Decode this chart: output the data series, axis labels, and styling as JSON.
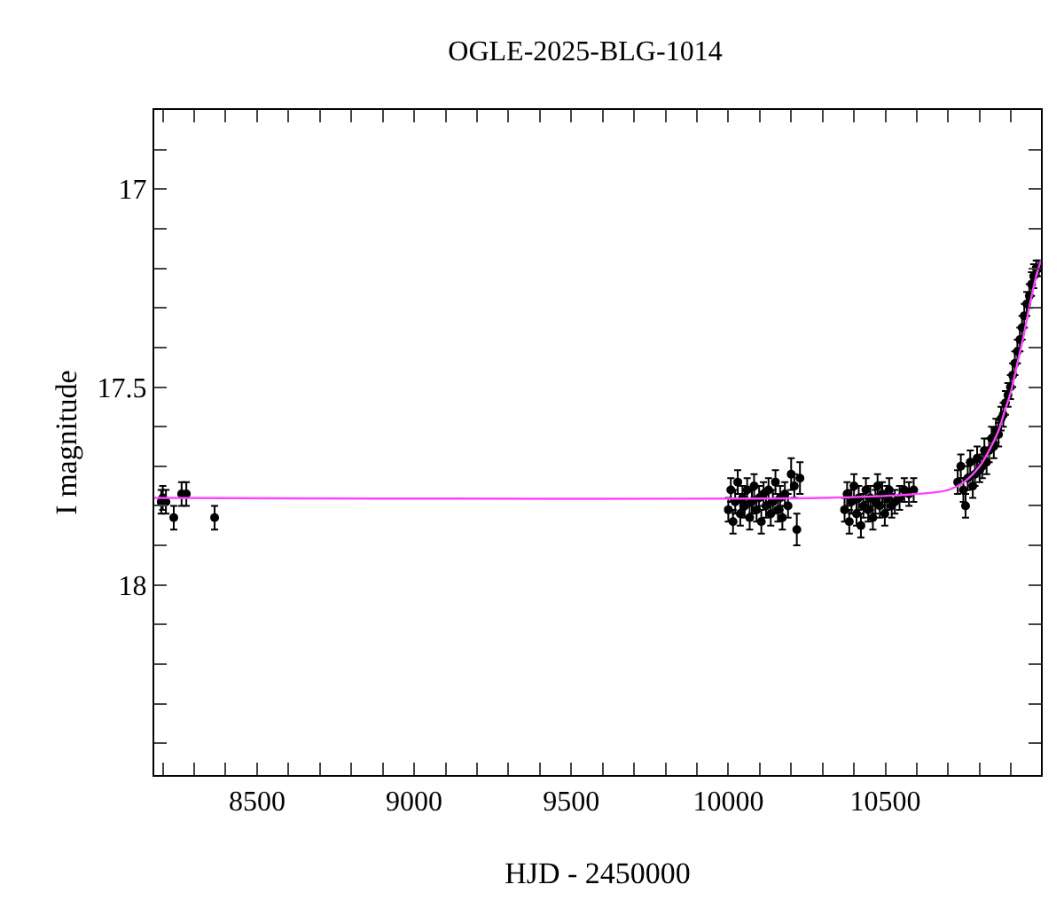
{
  "chart_data": {
    "type": "scatter",
    "title": "OGLE-2025-BLG-1014",
    "xlabel": "HJD - 2450000",
    "ylabel": "I magnitude",
    "xlim": [
      8173,
      10995
    ],
    "ylim": [
      18.48,
      16.8
    ],
    "xticks": [
      {
        "value": 8200,
        "label": null
      },
      {
        "value": 8300,
        "label": null
      },
      {
        "value": 8400,
        "label": null
      },
      8500,
      {
        "value": 8600,
        "label": null
      },
      {
        "value": 8700,
        "label": null
      },
      {
        "value": 8800,
        "label": null
      },
      {
        "value": 8900,
        "label": null
      },
      9000,
      {
        "value": 9100,
        "label": null
      },
      {
        "value": 9200,
        "label": null
      },
      {
        "value": 9300,
        "label": null
      },
      {
        "value": 9400,
        "label": null
      },
      9500,
      {
        "value": 9600,
        "label": null
      },
      {
        "value": 9700,
        "label": null
      },
      {
        "value": 9800,
        "label": null
      },
      {
        "value": 9900,
        "label": null
      },
      10000,
      {
        "value": 10100,
        "label": null
      },
      {
        "value": 10200,
        "label": null
      },
      {
        "value": 10300,
        "label": null
      },
      {
        "value": 10400,
        "label": null
      },
      10500,
      {
        "value": 10600,
        "label": null
      },
      {
        "value": 10700,
        "label": null
      },
      {
        "value": 10800,
        "label": null
      },
      {
        "value": 10900,
        "label": null
      }
    ],
    "yticks": [
      {
        "value": 16.9,
        "label": null
      },
      17,
      {
        "value": 17.1,
        "label": null
      },
      {
        "value": 17.2,
        "label": null
      },
      {
        "value": 17.3,
        "label": null
      },
      {
        "value": 17.4,
        "label": null
      },
      17.5,
      {
        "value": 17.6,
        "label": null
      },
      {
        "value": 17.7,
        "label": null
      },
      {
        "value": 17.8,
        "label": null
      },
      {
        "value": 17.9,
        "label": null
      },
      18,
      {
        "value": 18.1,
        "label": null
      },
      {
        "value": 18.2,
        "label": null
      },
      {
        "value": 18.3,
        "label": null
      },
      {
        "value": 18.4,
        "label": null
      }
    ],
    "grid": false,
    "series": [
      {
        "marker": "circle",
        "color": "#000000",
        "x": [
          8195,
          8200,
          8210,
          8235,
          8260,
          8275,
          8365,
          10000,
          10008,
          10015,
          10022,
          10030,
          10038,
          10045,
          10052,
          10060,
          10068,
          10075,
          10082,
          10090,
          10098,
          10105,
          10112,
          10120,
          10128,
          10135,
          10142,
          10150,
          10158,
          10165,
          10172,
          10180,
          10190,
          10200,
          10210,
          10218,
          10228,
          10370,
          10378,
          10385,
          10392,
          10400,
          10408,
          10415,
          10422,
          10430,
          10438,
          10445,
          10452,
          10460,
          10468,
          10475,
          10482,
          10490,
          10498,
          10505,
          10512,
          10520,
          10530,
          10545,
          10560,
          10575,
          10590,
          10730,
          10740,
          10748,
          10755,
          10762,
          10770,
          10778,
          10785,
          10792,
          10800,
          10808,
          10815,
          10822,
          10830,
          10838,
          10845,
          10852,
          10860,
          10868,
          10875,
          10882,
          10890,
          10898,
          10905,
          10912,
          10920,
          10928,
          10935,
          10942,
          10950,
          10958,
          10965,
          10972,
          10980,
          10988
        ],
        "values": [
          17.79,
          17.78,
          17.79,
          17.83,
          17.77,
          17.77,
          17.83,
          17.81,
          17.76,
          17.84,
          17.79,
          17.74,
          17.82,
          17.78,
          17.8,
          17.76,
          17.83,
          17.79,
          17.75,
          17.81,
          17.78,
          17.84,
          17.77,
          17.8,
          17.76,
          17.82,
          17.79,
          17.74,
          17.81,
          17.78,
          17.83,
          17.77,
          17.8,
          17.72,
          17.75,
          17.86,
          17.73,
          17.81,
          17.77,
          17.84,
          17.79,
          17.75,
          17.82,
          17.78,
          17.85,
          17.8,
          17.76,
          17.81,
          17.78,
          17.83,
          17.79,
          17.75,
          17.8,
          17.77,
          17.82,
          17.78,
          17.76,
          17.8,
          17.79,
          17.78,
          17.76,
          17.77,
          17.76,
          17.74,
          17.7,
          17.76,
          17.8,
          17.73,
          17.69,
          17.75,
          17.72,
          17.68,
          17.71,
          17.7,
          17.66,
          17.69,
          17.66,
          17.63,
          17.65,
          17.61,
          17.62,
          17.58,
          17.57,
          17.54,
          17.52,
          17.5,
          17.47,
          17.44,
          17.41,
          17.38,
          17.35,
          17.32,
          17.29,
          17.27,
          17.24,
          17.22,
          17.2,
          17.2
        ],
        "errors": [
          0.03,
          0.03,
          0.03,
          0.03,
          0.03,
          0.03,
          0.03,
          0.03,
          0.03,
          0.03,
          0.03,
          0.03,
          0.03,
          0.03,
          0.03,
          0.03,
          0.03,
          0.03,
          0.03,
          0.03,
          0.03,
          0.03,
          0.03,
          0.03,
          0.03,
          0.03,
          0.03,
          0.03,
          0.03,
          0.03,
          0.03,
          0.03,
          0.03,
          0.04,
          0.03,
          0.04,
          0.04,
          0.03,
          0.03,
          0.03,
          0.03,
          0.03,
          0.03,
          0.03,
          0.03,
          0.03,
          0.03,
          0.03,
          0.03,
          0.03,
          0.03,
          0.03,
          0.03,
          0.03,
          0.03,
          0.03,
          0.03,
          0.03,
          0.03,
          0.03,
          0.03,
          0.03,
          0.03,
          0.03,
          0.03,
          0.03,
          0.03,
          0.03,
          0.03,
          0.03,
          0.03,
          0.03,
          0.03,
          0.03,
          0.03,
          0.03,
          0.03,
          0.03,
          0.03,
          0.03,
          0.03,
          0.03,
          0.03,
          0.03,
          0.03,
          0.03,
          0.03,
          0.03,
          0.03,
          0.03,
          0.03,
          0.03,
          0.03,
          0.03,
          0.03,
          0.03,
          0.02,
          0.02
        ]
      },
      {
        "type": "line",
        "marker": "none",
        "color": "#ff44ff",
        "x": [
          8173,
          10300,
          10500,
          10600,
          10700,
          10750,
          10800,
          10830,
          10860,
          10880,
          10900,
          10920,
          10940,
          10960,
          10980,
          10995
        ],
        "values": [
          17.78,
          17.78,
          17.775,
          17.77,
          17.76,
          17.74,
          17.7,
          17.66,
          17.61,
          17.56,
          17.51,
          17.44,
          17.37,
          17.29,
          17.22,
          17.18
        ]
      }
    ]
  }
}
